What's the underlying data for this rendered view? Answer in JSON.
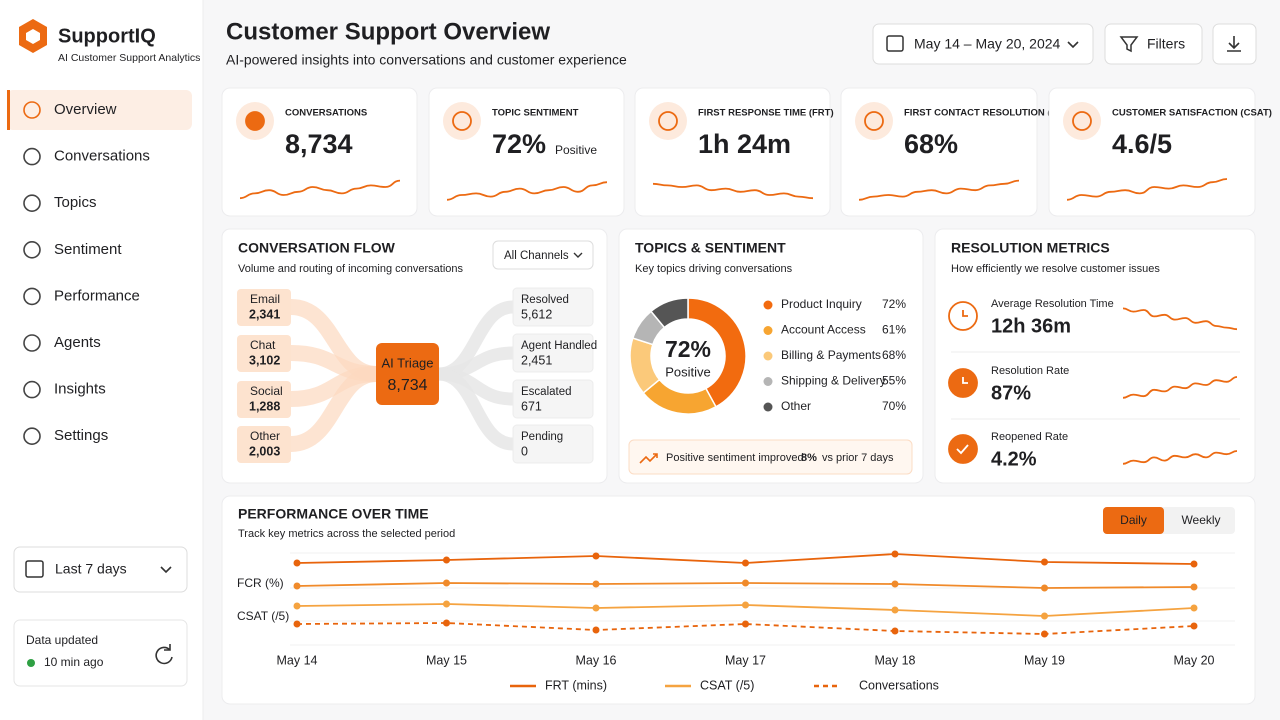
{
  "sidebar": {
    "brand": "SupportIQ",
    "tagline": "AI Customer Support Analytics",
    "nav": [
      "Overview",
      "Conversations",
      "Topics",
      "Sentiment",
      "Performance",
      "Agents",
      "Insights",
      "Settings"
    ],
    "range": "Last 7 days",
    "status_label": "Data updated",
    "status_time": "10 min ago"
  },
  "header": {
    "title": "Customer Support Overview",
    "subtitle": "AI-powered insights into conversations and customer experience",
    "date_range": "May 14 – May 20, 2024",
    "filters": "Filters"
  },
  "kpis": [
    {
      "label": "CONVERSATIONS",
      "value": "8,734",
      "trend": [
        15,
        30,
        40,
        25,
        35,
        50,
        40,
        30,
        45,
        55,
        50,
        70
      ]
    },
    {
      "label": "TOPIC SENTIMENT",
      "value": "72%",
      "tag": "Positive",
      "trend": [
        10,
        25,
        30,
        20,
        35,
        45,
        30,
        40,
        50,
        35,
        55,
        65
      ]
    },
    {
      "label": "FIRST RESPONSE TIME (FRT)",
      "value": "1h 24m",
      "trend": [
        60,
        55,
        50,
        55,
        40,
        45,
        35,
        40,
        25,
        30,
        20,
        15
      ]
    },
    {
      "label": "FIRST CONTACT RESOLUTION (FCR)",
      "value": "68%",
      "trend": [
        10,
        20,
        25,
        20,
        35,
        40,
        30,
        45,
        40,
        55,
        60,
        70
      ]
    },
    {
      "label": "CUSTOMER SATISFACTION (CSAT)",
      "value": "4.6/5",
      "trend": [
        10,
        25,
        20,
        35,
        40,
        30,
        50,
        45,
        55,
        50,
        65,
        75
      ]
    }
  ],
  "flow": {
    "title": "CONVERSATION FLOW",
    "subtitle": "Volume and routing of incoming conversations",
    "filter": "All Channels",
    "hub": {
      "label": "AI Triage",
      "value": "8,734"
    },
    "sources": [
      {
        "label": "Email",
        "value": "2,341"
      },
      {
        "label": "Chat",
        "value": "3,102"
      },
      {
        "label": "Social",
        "value": "1,288"
      },
      {
        "label": "Other",
        "value": "2,003"
      }
    ],
    "targets": [
      {
        "label": "Resolved",
        "value": "5,612"
      },
      {
        "label": "Agent Handled",
        "value": "2,451"
      },
      {
        "label": "Escalated",
        "value": "671"
      },
      {
        "label": "Pending",
        "value": "0"
      }
    ]
  },
  "topics": {
    "title": "TOPICS & SENTIMENT",
    "subtitle": "Key topics driving conversations",
    "center_value": "72%",
    "center_label": "Positive",
    "items": [
      {
        "name": "Product Inquiry",
        "value": 72,
        "label": "72%",
        "share": 42,
        "color": "#f26b0f"
      },
      {
        "name": "Account Access",
        "value": 61,
        "label": "61%",
        "share": 22,
        "color": "#f7a531"
      },
      {
        "name": "Billing & Payments",
        "value": 68,
        "label": "68%",
        "share": 16,
        "color": "#fbc97a"
      },
      {
        "name": "Shipping & Delivery",
        "value": 55,
        "label": "55%",
        "share": 9,
        "color": "#b5b5b5"
      },
      {
        "name": "Other",
        "value": 70,
        "label": "70%",
        "share": 11,
        "color": "#555555"
      }
    ],
    "note": {
      "text": "Positive sentiment improved",
      "change": "8%",
      "suffix": "vs prior 7 days"
    }
  },
  "resolution": {
    "title": "RESOLUTION METRICS",
    "subtitle": "How efficiently we resolve customer issues",
    "metrics": [
      {
        "label": "Average Resolution Time",
        "value": "12h 36m",
        "trend": [
          80,
          70,
          75,
          55,
          60,
          45,
          50,
          35,
          40,
          25,
          20,
          15
        ]
      },
      {
        "label": "Resolution Rate",
        "value": "87%",
        "trend": [
          10,
          20,
          15,
          35,
          30,
          45,
          40,
          55,
          50,
          65,
          60,
          75
        ]
      },
      {
        "label": "Reopened Rate",
        "value": "4.2%",
        "trend": [
          10,
          20,
          15,
          30,
          20,
          35,
          30,
          40,
          30,
          45,
          40,
          50
        ]
      }
    ]
  },
  "performance": {
    "title": "PERFORMANCE OVER TIME",
    "subtitle": "Track key metrics across the selected period",
    "toggle": [
      "Daily",
      "Weekly"
    ],
    "categories": [
      "May 14",
      "May 15",
      "May 16",
      "May 17",
      "May 18",
      "May 19",
      "May 20"
    ],
    "axis_labels": [
      "FCR (%)",
      "CSAT (/5)"
    ],
    "series": [
      {
        "name": "FRT (mins)",
        "color": "#e8640c",
        "values": [
          82,
          85,
          89,
          82,
          91,
          83,
          81
        ]
      },
      {
        "color": "#f08a2a",
        "values": [
          59,
          62,
          61,
          62,
          61,
          57,
          58
        ]
      },
      {
        "name": "CSAT (/5)",
        "color": "#f5a340",
        "values": [
          39,
          41,
          37,
          40,
          35,
          29,
          37
        ]
      },
      {
        "name": "Conversations",
        "color": "#e8640c",
        "dashed": true,
        "values": [
          21,
          22,
          15,
          21,
          14,
          11,
          19
        ]
      }
    ]
  }
}
